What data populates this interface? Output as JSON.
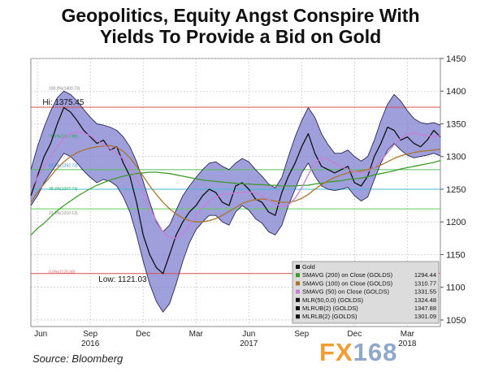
{
  "title_line1": "Geopolitics, Equity Angst Conspire With",
  "title_line2": "Yields To Provide a Bid on Gold",
  "source": "Source: Bloomberg",
  "logo": {
    "part1": "FX",
    "part2": "168"
  },
  "chart_data": {
    "type": "line",
    "title": "Geopolitics, Equity Angst Conspire With Yields To Provide a Bid on Gold",
    "ylim": [
      1040,
      1450
    ],
    "y_ticks": [
      1050,
      1100,
      1150,
      1200,
      1250,
      1300,
      1350,
      1400,
      1450
    ],
    "x_tick_labels": [
      "Jun",
      "Sep",
      "Dec",
      "Mar",
      "Jun",
      "Sep",
      "Dec",
      "Mar"
    ],
    "year_labels": [
      "2016",
      "2017",
      "2018"
    ],
    "grid": true,
    "x": [
      0,
      2,
      4,
      6,
      8,
      10,
      12,
      14,
      16,
      18,
      20,
      22,
      24,
      26,
      28,
      30,
      32,
      34,
      36,
      38,
      40,
      42,
      44,
      46,
      48,
      50,
      52,
      54,
      56,
      58,
      60,
      62,
      64,
      66,
      68,
      70,
      72,
      74,
      76,
      78,
      80,
      82,
      84,
      86,
      88,
      90,
      92,
      94,
      96,
      98,
      100,
      102,
      104,
      106,
      108,
      110,
      112,
      114,
      116,
      118,
      120,
      122,
      124
    ],
    "series": [
      {
        "name": "Gold",
        "color": "#111111",
        "values": [
          1240,
          1270,
          1300,
          1320,
          1350,
          1375,
          1368,
          1355,
          1340,
          1330,
          1320,
          1325,
          1310,
          1315,
          1290,
          1270,
          1230,
          1180,
          1150,
          1130,
          1121,
          1150,
          1180,
          1200,
          1215,
          1225,
          1240,
          1250,
          1245,
          1230,
          1225,
          1255,
          1260,
          1250,
          1235,
          1230,
          1215,
          1210,
          1245,
          1270,
          1290,
          1315,
          1335,
          1305,
          1285,
          1280,
          1275,
          1280,
          1285,
          1260,
          1255,
          1270,
          1300,
          1320,
          1345,
          1340,
          1325,
          1330,
          1320,
          1315,
          1325,
          1340,
          1330
        ]
      },
      {
        "name": "SMAVG (200) on Close (GOLDS)",
        "color": "#3f9a2d",
        "label_value": "1294.44",
        "values": [
          1180,
          1190,
          1198,
          1208,
          1217,
          1225,
          1232,
          1239,
          1245,
          1251,
          1256,
          1260,
          1264,
          1267,
          1270,
          1272,
          1274,
          1275,
          1276,
          1276,
          1275,
          1274,
          1272,
          1270,
          1268,
          1266,
          1264,
          1263,
          1262,
          1261,
          1260,
          1259,
          1258,
          1258,
          1257,
          1257,
          1256,
          1256,
          1255,
          1255,
          1255,
          1256,
          1256,
          1258,
          1259,
          1261,
          1262,
          1263,
          1265,
          1266,
          1267,
          1269,
          1272,
          1274,
          1276,
          1278,
          1281,
          1283,
          1285,
          1287,
          1289,
          1291,
          1294
        ]
      },
      {
        "name": "SMAVG (100) on Close (GOLDS)",
        "color": "#a8752c",
        "label_value": "1310.77",
        "values": [
          1230,
          1245,
          1258,
          1270,
          1282,
          1292,
          1300,
          1306,
          1310,
          1313,
          1315,
          1316,
          1317,
          1314,
          1308,
          1298,
          1285,
          1270,
          1255,
          1242,
          1230,
          1220,
          1212,
          1206,
          1202,
          1200,
          1200,
          1202,
          1205,
          1210,
          1216,
          1222,
          1228,
          1232,
          1234,
          1235,
          1234,
          1232,
          1230,
          1230,
          1232,
          1236,
          1242,
          1250,
          1257,
          1263,
          1268,
          1272,
          1275,
          1277,
          1278,
          1280,
          1283,
          1287,
          1292,
          1297,
          1301,
          1304,
          1306,
          1308,
          1309,
          1310,
          1311
        ]
      },
      {
        "name": "SMAVG (50) on Close (GOLDS)",
        "color": "#c77fd6",
        "label_value": "1331.55",
        "values": [
          1250,
          1268,
          1285,
          1300,
          1315,
          1328,
          1335,
          1338,
          1336,
          1332,
          1325,
          1318,
          1312,
          1305,
          1296,
          1284,
          1266,
          1245,
          1222,
          1202,
          1185,
          1176,
          1175,
          1182,
          1195,
          1210,
          1222,
          1232,
          1238,
          1242,
          1243,
          1244,
          1245,
          1246,
          1244,
          1240,
          1234,
          1228,
          1224,
          1226,
          1236,
          1252,
          1272,
          1290,
          1298,
          1296,
          1290,
          1284,
          1280,
          1277,
          1275,
          1277,
          1283,
          1294,
          1306,
          1318,
          1328,
          1334,
          1336,
          1333,
          1332,
          1331,
          1332
        ]
      },
      {
        "name": "MLR(50,0,0) (GOLDS)",
        "color": "#111111",
        "label_value": "1324.48"
      },
      {
        "name": "MLRUB(2) (GOLDS)",
        "color": "#111111",
        "label_value": "1347.88",
        "values": [
          1280,
          1315,
          1345,
          1370,
          1390,
          1400,
          1395,
          1385,
          1372,
          1360,
          1350,
          1348,
          1345,
          1340,
          1330,
          1315,
          1292,
          1262,
          1230,
          1200,
          1185,
          1195,
          1218,
          1240,
          1255,
          1268,
          1280,
          1290,
          1292,
          1285,
          1280,
          1290,
          1297,
          1292,
          1280,
          1270,
          1258,
          1252,
          1268,
          1300,
          1330,
          1355,
          1375,
          1360,
          1335,
          1318,
          1305,
          1305,
          1310,
          1300,
          1293,
          1300,
          1325,
          1355,
          1380,
          1395,
          1385,
          1370,
          1358,
          1352,
          1350,
          1352,
          1348
        ]
      },
      {
        "name": "MLRLB(2) (GOLDS)",
        "color": "#111111",
        "label_value": "1301.09",
        "values": [
          1225,
          1240,
          1260,
          1275,
          1290,
          1305,
          1300,
          1290,
          1278,
          1268,
          1260,
          1265,
          1262,
          1255,
          1238,
          1215,
          1180,
          1140,
          1105,
          1078,
          1062,
          1075,
          1105,
          1140,
          1168,
          1188,
          1200,
          1210,
          1210,
          1200,
          1195,
          1215,
          1225,
          1218,
          1205,
          1198,
          1185,
          1180,
          1195,
          1225,
          1250,
          1275,
          1290,
          1270,
          1255,
          1250,
          1248,
          1250,
          1253,
          1240,
          1232,
          1238,
          1265,
          1290,
          1310,
          1320,
          1310,
          1302,
          1298,
          1300,
          1302,
          1305,
          1301
        ]
      }
    ],
    "fib_levels": [
      {
        "label": "100.0%(1400.73)",
        "value": 1400.73,
        "color": "#7d7d7d"
      },
      {
        "label": "76.4%(1327.86)",
        "value": 1327.86,
        "color": "#2fa84f"
      },
      {
        "label": "61.8%(1282.73)",
        "value": 1282.73,
        "color": "#2f8fd8"
      },
      {
        "label": "38.2%(1247.73)",
        "value": 1247.73,
        "color": "#2fb05a"
      },
      {
        "label": "23.6%(1210.13)",
        "value": 1210.13,
        "color": "#888888"
      },
      {
        "label": "0.0%(1120.08)",
        "value": 1120.08,
        "color": "#d86a6a"
      }
    ],
    "hlines": [
      {
        "value": 1375.45,
        "color": "#d84f4f"
      },
      {
        "value": 1280,
        "color": "#4fc05a"
      },
      {
        "value": 1250,
        "color": "#40b8d8"
      },
      {
        "value": 1220,
        "color": "#5fcf5a"
      },
      {
        "value": 1121.03,
        "color": "#d84f4f"
      }
    ],
    "annotations": [
      {
        "text": "Hi: 1375.45",
        "x": 5,
        "y": 1375.45
      },
      {
        "text": "Low: 1121.03",
        "x": 20,
        "y": 1121.03
      }
    ],
    "legend": {
      "placement": "bottom-right",
      "header": "Gold"
    }
  }
}
